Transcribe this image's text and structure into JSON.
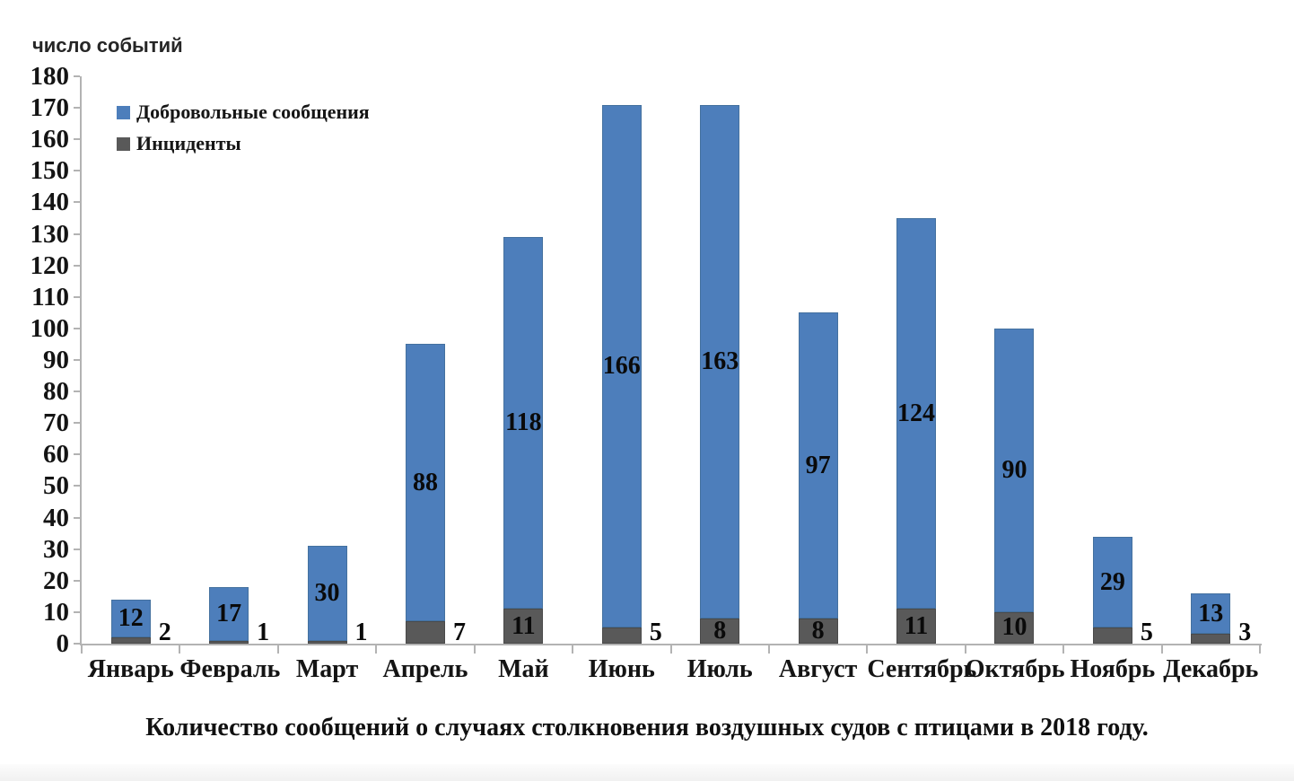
{
  "chart": {
    "axis_title": "число событий",
    "caption": "Количество сообщений о случаях столкновения воздушных судов с птицами в 2018 году.",
    "legend": {
      "items": [
        {
          "label": "Добровольные сообщения",
          "color": "#4d7ebb"
        },
        {
          "label": "Инциденты",
          "color": "#595959"
        }
      ]
    }
  },
  "chart_data": {
    "type": "bar",
    "stacked": true,
    "title": "Количество сообщений о случаях столкновения воздушных судов с птицами в 2018 году.",
    "xlabel": "",
    "ylabel": "число событий",
    "categories": [
      "Январь",
      "Февраль",
      "Март",
      "Апрель",
      "Май",
      "Июнь",
      "Июль",
      "Август",
      "Сентябрь",
      "Октябрь",
      "Ноябрь",
      "Декабрь"
    ],
    "series": [
      {
        "name": "Инциденты",
        "color": "#595959",
        "values": [
          2,
          1,
          1,
          7,
          11,
          5,
          8,
          8,
          11,
          10,
          5,
          3
        ]
      },
      {
        "name": "Добровольные сообщения",
        "color": "#4d7ebb",
        "values": [
          12,
          17,
          30,
          88,
          118,
          166,
          163,
          97,
          124,
          90,
          29,
          13
        ]
      }
    ],
    "totals": [
      14,
      18,
      31,
      95,
      129,
      171,
      171,
      105,
      135,
      100,
      34,
      16
    ],
    "ylim": [
      0,
      180
    ],
    "yticks": [
      0,
      10,
      20,
      30,
      40,
      50,
      60,
      70,
      80,
      90,
      100,
      110,
      120,
      130,
      140,
      150,
      160,
      170,
      180
    ],
    "grid": false,
    "legend_position": "top-left",
    "axis_color": "#b3b3b3"
  }
}
